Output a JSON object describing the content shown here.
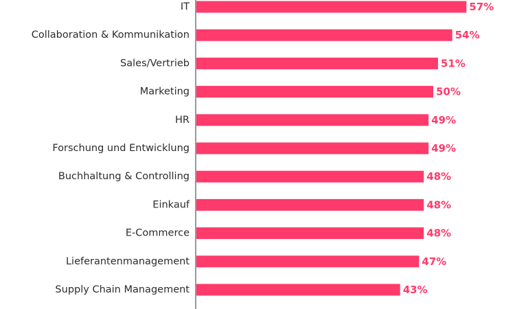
{
  "colors": {
    "bar": "#ff3b6b",
    "value_text": "#ff3b6b",
    "axis": "#555555",
    "label_text": "#2b2b2b",
    "background": "#ffffff"
  },
  "chart_data": {
    "type": "bar",
    "orientation": "horizontal",
    "categories": [
      "IT",
      "Collaboration & Kommunikation",
      "Sales/Vertrieb",
      "Marketing",
      "HR",
      "Forschung und Entwicklung",
      "Buchhaltung & Controlling",
      "Einkauf",
      "E-Commerce",
      "Lieferantenmanagement",
      "Supply Chain Management"
    ],
    "values": [
      57,
      54,
      51,
      50,
      49,
      49,
      48,
      48,
      48,
      47,
      43
    ],
    "value_labels": [
      "57%",
      "54%",
      "51%",
      "50%",
      "49%",
      "49%",
      "48%",
      "48%",
      "48%",
      "47%",
      "43%"
    ],
    "unit": "%",
    "xlim": [
      0,
      60
    ],
    "grid": false,
    "legend": "none"
  }
}
